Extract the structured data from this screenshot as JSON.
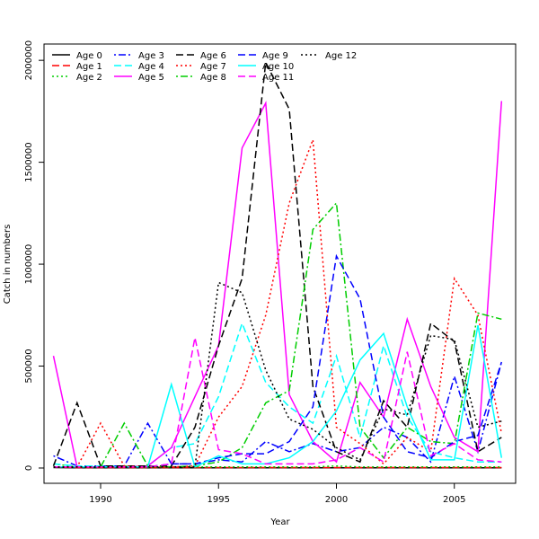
{
  "chart_data": {
    "type": "line",
    "title": "",
    "xlabel": "Year",
    "ylabel": "Catch in numbers",
    "xlim": [
      1987.6,
      2007.6
    ],
    "ylim": [
      -75000,
      2080000
    ],
    "x_ticks": [
      1990,
      1995,
      2000,
      2005
    ],
    "y_ticks": [
      0,
      500000,
      1000000,
      1500000,
      2000000
    ],
    "legend_position": "top-left",
    "grid": false,
    "x": [
      1988,
      1989,
      1990,
      1991,
      1992,
      1993,
      1994,
      1995,
      1996,
      1997,
      1998,
      1999,
      2000,
      2001,
      2002,
      2003,
      2004,
      2005,
      2006,
      2007
    ],
    "series": [
      {
        "name": "Age 0",
        "color": "#000000",
        "dash": "solid",
        "values": [
          2000,
          1000,
          1000,
          1000,
          1000,
          1000,
          1000,
          1000,
          1000,
          1000,
          1000,
          1000,
          1000,
          1000,
          1000,
          1000,
          1000,
          1000,
          1000,
          1000
        ]
      },
      {
        "name": "Age 1",
        "color": "#ff0000",
        "dash": "long",
        "values": [
          5000,
          2000,
          2000,
          2000,
          2000,
          2000,
          2000,
          2000,
          2000,
          2000,
          2000,
          2000,
          2000,
          2000,
          2000,
          2000,
          2000,
          2000,
          2000,
          2000
        ]
      },
      {
        "name": "Age 2",
        "color": "#00cd00",
        "dash": "dot",
        "values": [
          20000,
          5000,
          5000,
          10000,
          3000,
          5000,
          5000,
          5000,
          5000,
          5000,
          5000,
          5000,
          10000,
          5000,
          5000,
          5000,
          5000,
          5000,
          5000,
          5000
        ]
      },
      {
        "name": "Age 3",
        "color": "#0000ff",
        "dash": "dotdash",
        "values": [
          60000,
          10000,
          10000,
          10000,
          220000,
          20000,
          20000,
          40000,
          30000,
          130000,
          80000,
          120000,
          80000,
          100000,
          200000,
          150000,
          30000,
          450000,
          80000,
          520000
        ]
      },
      {
        "name": "Age 4",
        "color": "#00ffff",
        "dash": "long",
        "values": [
          20000,
          10000,
          10000,
          10000,
          10000,
          100000,
          120000,
          350000,
          710000,
          420000,
          300000,
          220000,
          550000,
          150000,
          600000,
          250000,
          80000,
          50000,
          30000,
          30000
        ]
      },
      {
        "name": "Age 5",
        "color": "#ff00ff",
        "dash": "solid",
        "values": [
          550000,
          5000,
          5000,
          5000,
          10000,
          100000,
          350000,
          600000,
          1570000,
          1790000,
          360000,
          130000,
          30000,
          420000,
          250000,
          730000,
          400000,
          150000,
          80000,
          1800000
        ]
      },
      {
        "name": "Age 6",
        "color": "#000000",
        "dash": "long",
        "values": [
          10000,
          320000,
          10000,
          10000,
          10000,
          10000,
          200000,
          600000,
          930000,
          1990000,
          1760000,
          400000,
          80000,
          30000,
          330000,
          200000,
          710000,
          620000,
          80000,
          150000
        ]
      },
      {
        "name": "Age 7",
        "color": "#ff0000",
        "dash": "dot",
        "values": [
          5000,
          5000,
          220000,
          10000,
          5000,
          5000,
          10000,
          250000,
          400000,
          750000,
          1300000,
          1610000,
          200000,
          120000,
          20000,
          150000,
          80000,
          930000,
          750000,
          170000
        ]
      },
      {
        "name": "Age 8",
        "color": "#00cd00",
        "dash": "dotdash",
        "values": [
          5000,
          5000,
          5000,
          220000,
          10000,
          5000,
          10000,
          30000,
          100000,
          320000,
          380000,
          1170000,
          1300000,
          200000,
          50000,
          200000,
          130000,
          120000,
          760000,
          730000
        ]
      },
      {
        "name": "Age 9",
        "color": "#0000ff",
        "dash": "long",
        "values": [
          5000,
          5000,
          5000,
          5000,
          5000,
          20000,
          20000,
          50000,
          70000,
          70000,
          130000,
          300000,
          1040000,
          830000,
          250000,
          80000,
          50000,
          130000,
          160000,
          520000
        ]
      },
      {
        "name": "Age 10",
        "color": "#00ffff",
        "dash": "solid",
        "values": [
          5000,
          5000,
          5000,
          5000,
          5000,
          410000,
          5000,
          60000,
          20000,
          20000,
          50000,
          130000,
          280000,
          530000,
          660000,
          300000,
          40000,
          40000,
          700000,
          50000
        ]
      },
      {
        "name": "Age 11",
        "color": "#ff00ff",
        "dash": "long",
        "values": [
          5000,
          5000,
          5000,
          5000,
          5000,
          20000,
          640000,
          90000,
          70000,
          20000,
          20000,
          20000,
          40000,
          100000,
          30000,
          570000,
          60000,
          120000,
          40000,
          30000
        ]
      },
      {
        "name": "Age 12",
        "color": "#000000",
        "dash": "dot",
        "values": [
          5000,
          5000,
          5000,
          5000,
          5000,
          5000,
          5000,
          910000,
          860000,
          480000,
          240000,
          190000,
          100000,
          40000,
          290000,
          260000,
          650000,
          630000,
          200000,
          230000
        ]
      }
    ]
  }
}
